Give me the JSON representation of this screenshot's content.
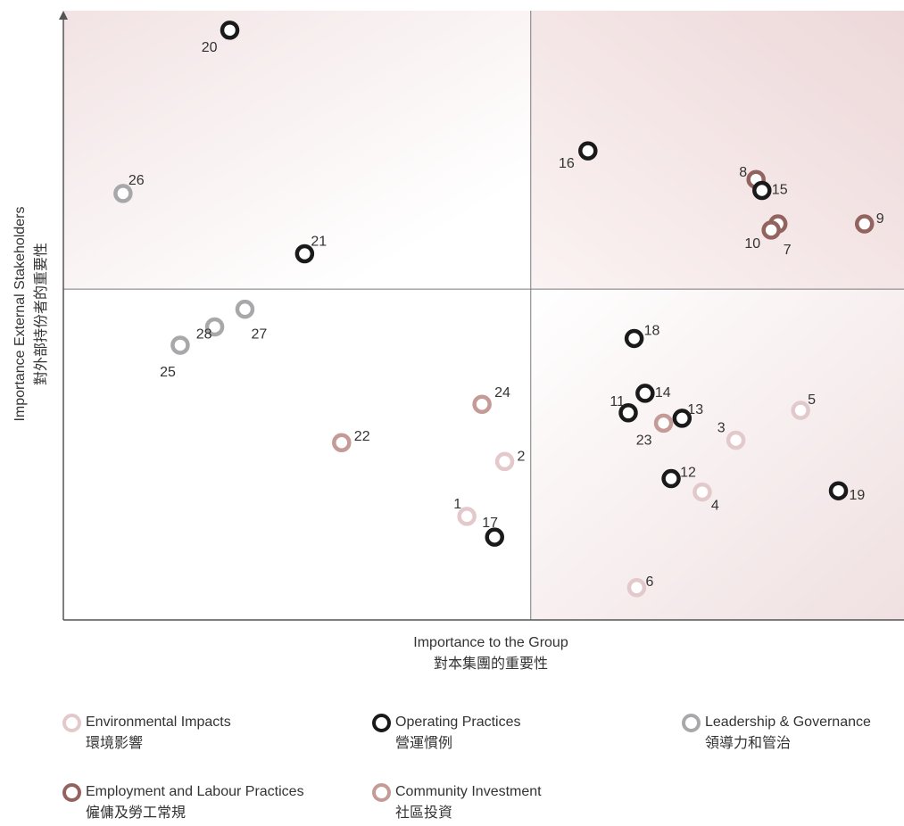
{
  "chart_data": {
    "type": "scatter",
    "xlabel": [
      "Importance to the Group",
      "對本集團的重要性"
    ],
    "ylabel": [
      "Importance External Stakeholders",
      "對外部持份者的重要性"
    ],
    "xlim": [
      0,
      100
    ],
    "ylim": [
      0,
      100
    ],
    "quadrant_split": {
      "x": 55.6,
      "y": 54.3
    },
    "series": [
      {
        "key": "env",
        "name": "Environmental Impacts",
        "name_zh": "環境影響",
        "color": "#e3c9cb",
        "points": [
          {
            "id": "1",
            "x": 48,
            "y": 17
          },
          {
            "id": "2",
            "x": 52.5,
            "y": 26
          },
          {
            "id": "3",
            "x": 80,
            "y": 29.5
          },
          {
            "id": "4",
            "x": 76,
            "y": 21
          },
          {
            "id": "5",
            "x": 87.7,
            "y": 34.4
          },
          {
            "id": "6",
            "x": 68.2,
            "y": 5.3
          }
        ]
      },
      {
        "key": "emp",
        "name": "Employment and Labour Practices",
        "name_zh": "僱傭及勞工常規",
        "color": "#93645f",
        "points": [
          {
            "id": "7",
            "x": 85,
            "y": 65
          },
          {
            "id": "8",
            "x": 82.4,
            "y": 72.3
          },
          {
            "id": "9",
            "x": 95.3,
            "y": 65
          },
          {
            "id": "10",
            "x": 84.2,
            "y": 64
          }
        ]
      },
      {
        "key": "ops",
        "name": "Operating Practices",
        "name_zh": "營運慣例",
        "color": "#1a1a1a",
        "points": [
          {
            "id": "11",
            "x": 67.2,
            "y": 34
          },
          {
            "id": "12",
            "x": 72.3,
            "y": 23.2
          },
          {
            "id": "13",
            "x": 73.6,
            "y": 33.1
          },
          {
            "id": "14",
            "x": 69.2,
            "y": 37.2
          },
          {
            "id": "15",
            "x": 83.1,
            "y": 70.5
          },
          {
            "id": "16",
            "x": 62.4,
            "y": 77
          },
          {
            "id": "17",
            "x": 51.3,
            "y": 13.6
          },
          {
            "id": "18",
            "x": 67.9,
            "y": 46.2
          },
          {
            "id": "19",
            "x": 92.2,
            "y": 21.2
          },
          {
            "id": "20",
            "x": 19.8,
            "y": 96.8
          },
          {
            "id": "21",
            "x": 28.7,
            "y": 60.1
          }
        ]
      },
      {
        "key": "lead",
        "name": "Leadership & Governance",
        "name_zh": "領導力和管治",
        "color": "#a8a8aa",
        "points": [
          {
            "id": "25",
            "x": 13.9,
            "y": 45.1
          },
          {
            "id": "26",
            "x": 7.1,
            "y": 70
          },
          {
            "id": "27",
            "x": 21.6,
            "y": 51
          },
          {
            "id": "28",
            "x": 18,
            "y": 48.1
          }
        ]
      },
      {
        "key": "comm",
        "name": "Community Investment",
        "name_zh": "社區投資",
        "color": "#c49b96",
        "points": [
          {
            "id": "22",
            "x": 33.1,
            "y": 29.1
          },
          {
            "id": "23",
            "x": 71.4,
            "y": 32.3
          },
          {
            "id": "24",
            "x": 49.8,
            "y": 35.4
          }
        ]
      }
    ]
  }
}
